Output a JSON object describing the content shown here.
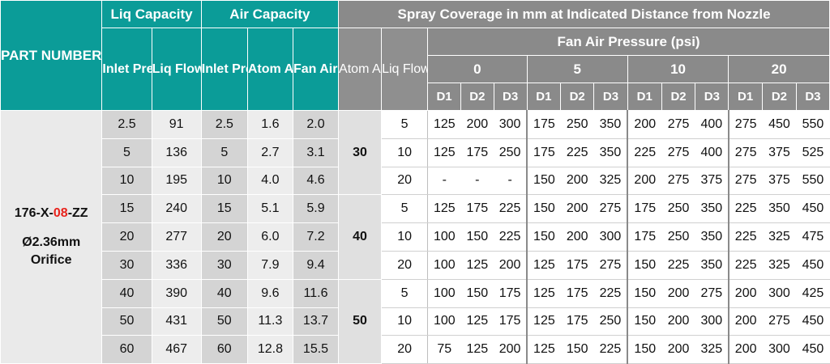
{
  "header": {
    "part_number": "PART NUMBER",
    "liq_capacity": "Liq Capacity",
    "air_capacity": "Air Capacity",
    "spray_coverage": "Spray Coverage in mm at Indicated Distance from Nozzle",
    "fan_air_pressure": "Fan Air Pressure (psi)",
    "inlet_pres": "Inlet Pres psi",
    "liq_flow_lthr": "Liq Flow lt/hr",
    "inlet_pres_air": "Inlet Pres psi",
    "atom_air_scfm": "Atom Air scfm",
    "fan_air_scfm": "Fan Air scfm",
    "atom_air_psi": "Atom Air psi",
    "liq_flow_psi": "Liq Flow psi",
    "fan_pressures": [
      "0",
      "5",
      "10",
      "20"
    ],
    "d_labels": [
      "D1",
      "D2",
      "D3"
    ]
  },
  "part": {
    "prefix": "176-X-",
    "code": "08",
    "suffix": "-ZZ",
    "orifice_line1": "Ø2.36mm",
    "orifice_line2": "Orifice"
  },
  "capacity_rows": [
    {
      "liq_inlet": "2.5",
      "liq_flow": "91",
      "air_inlet": "2.5",
      "atom_air": "1.6",
      "fan_air": "2.0"
    },
    {
      "liq_inlet": "5",
      "liq_flow": "136",
      "air_inlet": "5",
      "atom_air": "2.7",
      "fan_air": "3.1"
    },
    {
      "liq_inlet": "10",
      "liq_flow": "195",
      "air_inlet": "10",
      "atom_air": "4.0",
      "fan_air": "4.6"
    },
    {
      "liq_inlet": "15",
      "liq_flow": "240",
      "air_inlet": "15",
      "atom_air": "5.1",
      "fan_air": "5.9"
    },
    {
      "liq_inlet": "20",
      "liq_flow": "277",
      "air_inlet": "20",
      "atom_air": "6.0",
      "fan_air": "7.2"
    },
    {
      "liq_inlet": "30",
      "liq_flow": "336",
      "air_inlet": "30",
      "atom_air": "7.9",
      "fan_air": "9.4"
    },
    {
      "liq_inlet": "40",
      "liq_flow": "390",
      "air_inlet": "40",
      "atom_air": "9.6",
      "fan_air": "11.6"
    },
    {
      "liq_inlet": "50",
      "liq_flow": "431",
      "air_inlet": "50",
      "atom_air": "11.3",
      "fan_air": "13.7"
    },
    {
      "liq_inlet": "60",
      "liq_flow": "467",
      "air_inlet": "60",
      "atom_air": "12.8",
      "fan_air": "15.5"
    }
  ],
  "coverage_groups": [
    {
      "atom_air": "30",
      "rows": [
        {
          "liq_flow": "5",
          "values": [
            "125",
            "200",
            "300",
            "175",
            "250",
            "350",
            "200",
            "275",
            "400",
            "275",
            "450",
            "550"
          ]
        },
        {
          "liq_flow": "10",
          "values": [
            "125",
            "175",
            "250",
            "175",
            "225",
            "350",
            "225",
            "275",
            "400",
            "275",
            "375",
            "525"
          ]
        },
        {
          "liq_flow": "20",
          "values": [
            "-",
            "-",
            "-",
            "150",
            "200",
            "325",
            "200",
            "275",
            "375",
            "275",
            "375",
            "550"
          ]
        }
      ]
    },
    {
      "atom_air": "40",
      "rows": [
        {
          "liq_flow": "5",
          "values": [
            "125",
            "175",
            "225",
            "150",
            "200",
            "275",
            "175",
            "250",
            "350",
            "225",
            "350",
            "450"
          ]
        },
        {
          "liq_flow": "10",
          "values": [
            "100",
            "150",
            "225",
            "150",
            "200",
            "300",
            "175",
            "250",
            "350",
            "225",
            "325",
            "475"
          ]
        },
        {
          "liq_flow": "20",
          "values": [
            "100",
            "125",
            "200",
            "125",
            "175",
            "275",
            "150",
            "225",
            "350",
            "225",
            "325",
            "450"
          ]
        }
      ]
    },
    {
      "atom_air": "50",
      "rows": [
        {
          "liq_flow": "5",
          "values": [
            "100",
            "150",
            "175",
            "125",
            "175",
            "225",
            "150",
            "200",
            "275",
            "200",
            "300",
            "425"
          ]
        },
        {
          "liq_flow": "10",
          "values": [
            "100",
            "125",
            "175",
            "125",
            "175",
            "250",
            "150",
            "200",
            "300",
            "200",
            "275",
            "450"
          ]
        },
        {
          "liq_flow": "20",
          "values": [
            "75",
            "125",
            "200",
            "125",
            "150",
            "225",
            "150",
            "200",
            "325",
            "200",
            "300",
            "450"
          ]
        }
      ]
    }
  ],
  "colors": {
    "teal_header": "#0b9c98",
    "gray_header": "#8a8a8a",
    "part_code_red": "#e8231c"
  }
}
